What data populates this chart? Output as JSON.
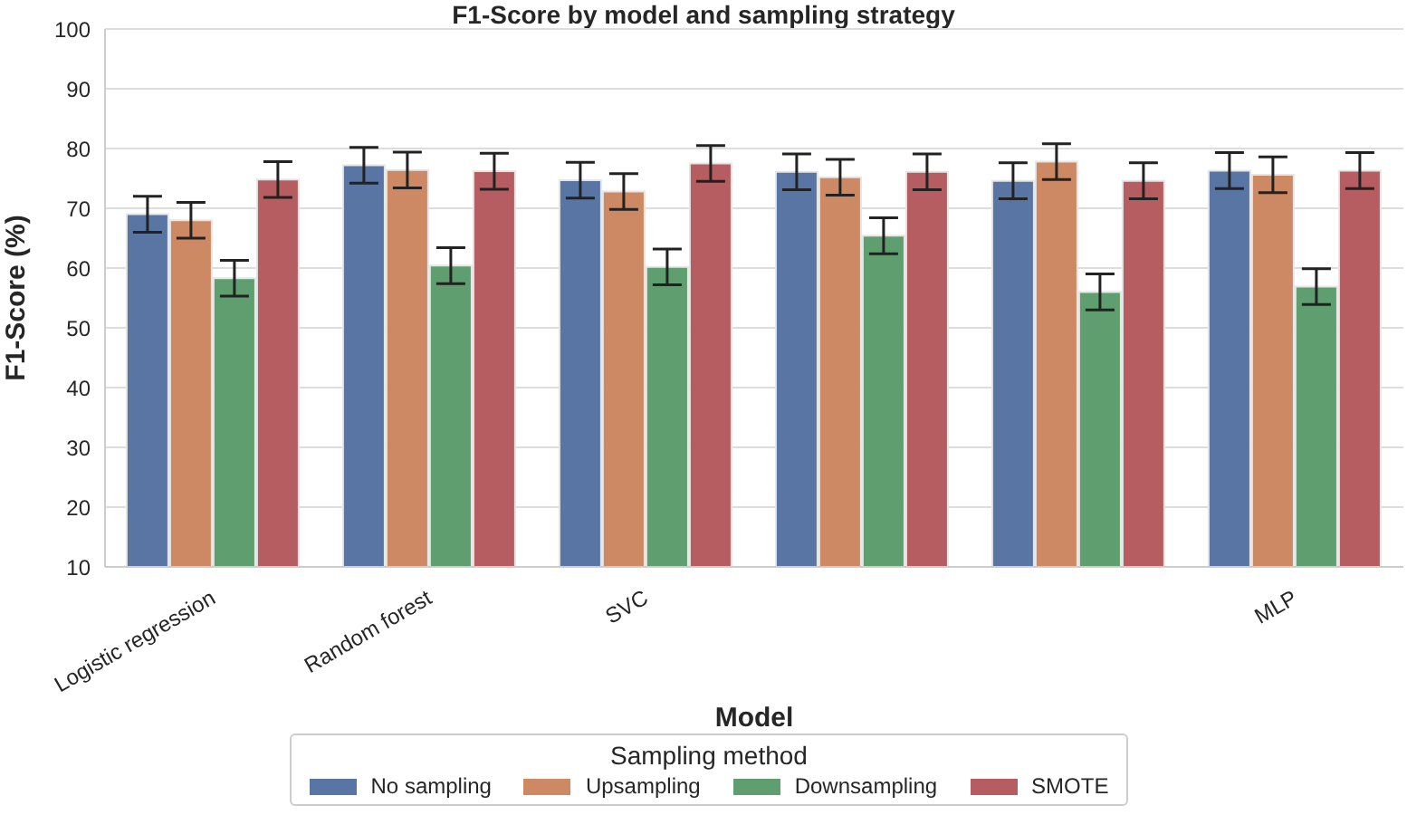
{
  "chart_data": {
    "type": "bar",
    "title": "F1-Score by model and sampling strategy",
    "xlabel": "Model",
    "ylabel": "F1-Score (%)",
    "legend_title": "Sampling method",
    "categories": [
      "Logistic regression",
      "Random forest",
      "SVC",
      null,
      null,
      "MLP"
    ],
    "series": [
      {
        "name": "No sampling",
        "color": "#5875a4",
        "values": [
          69.0,
          77.2,
          74.7,
          76.1,
          74.6,
          76.3
        ],
        "errors": [
          3,
          3,
          3,
          3,
          3,
          3
        ]
      },
      {
        "name": "Upsampling",
        "color": "#cc8963",
        "values": [
          68.0,
          76.4,
          72.8,
          75.2,
          77.8,
          75.6
        ],
        "errors": [
          3,
          3,
          3,
          3,
          3,
          3
        ]
      },
      {
        "name": "Downsampling",
        "color": "#5f9e6e",
        "values": [
          58.3,
          60.4,
          60.2,
          65.4,
          56.0,
          56.9
        ],
        "errors": [
          3,
          3,
          3,
          3,
          3,
          3
        ]
      },
      {
        "name": "SMOTE",
        "color": "#b55d60",
        "values": [
          74.8,
          76.2,
          77.5,
          76.1,
          74.6,
          76.3
        ],
        "errors": [
          3,
          3,
          3,
          3,
          3,
          3
        ]
      }
    ],
    "ylim": [
      10,
      100
    ],
    "yticks": [
      10,
      20,
      30,
      40,
      50,
      60,
      70,
      80,
      90,
      100
    ],
    "grid": "y",
    "legend": "bottom"
  }
}
